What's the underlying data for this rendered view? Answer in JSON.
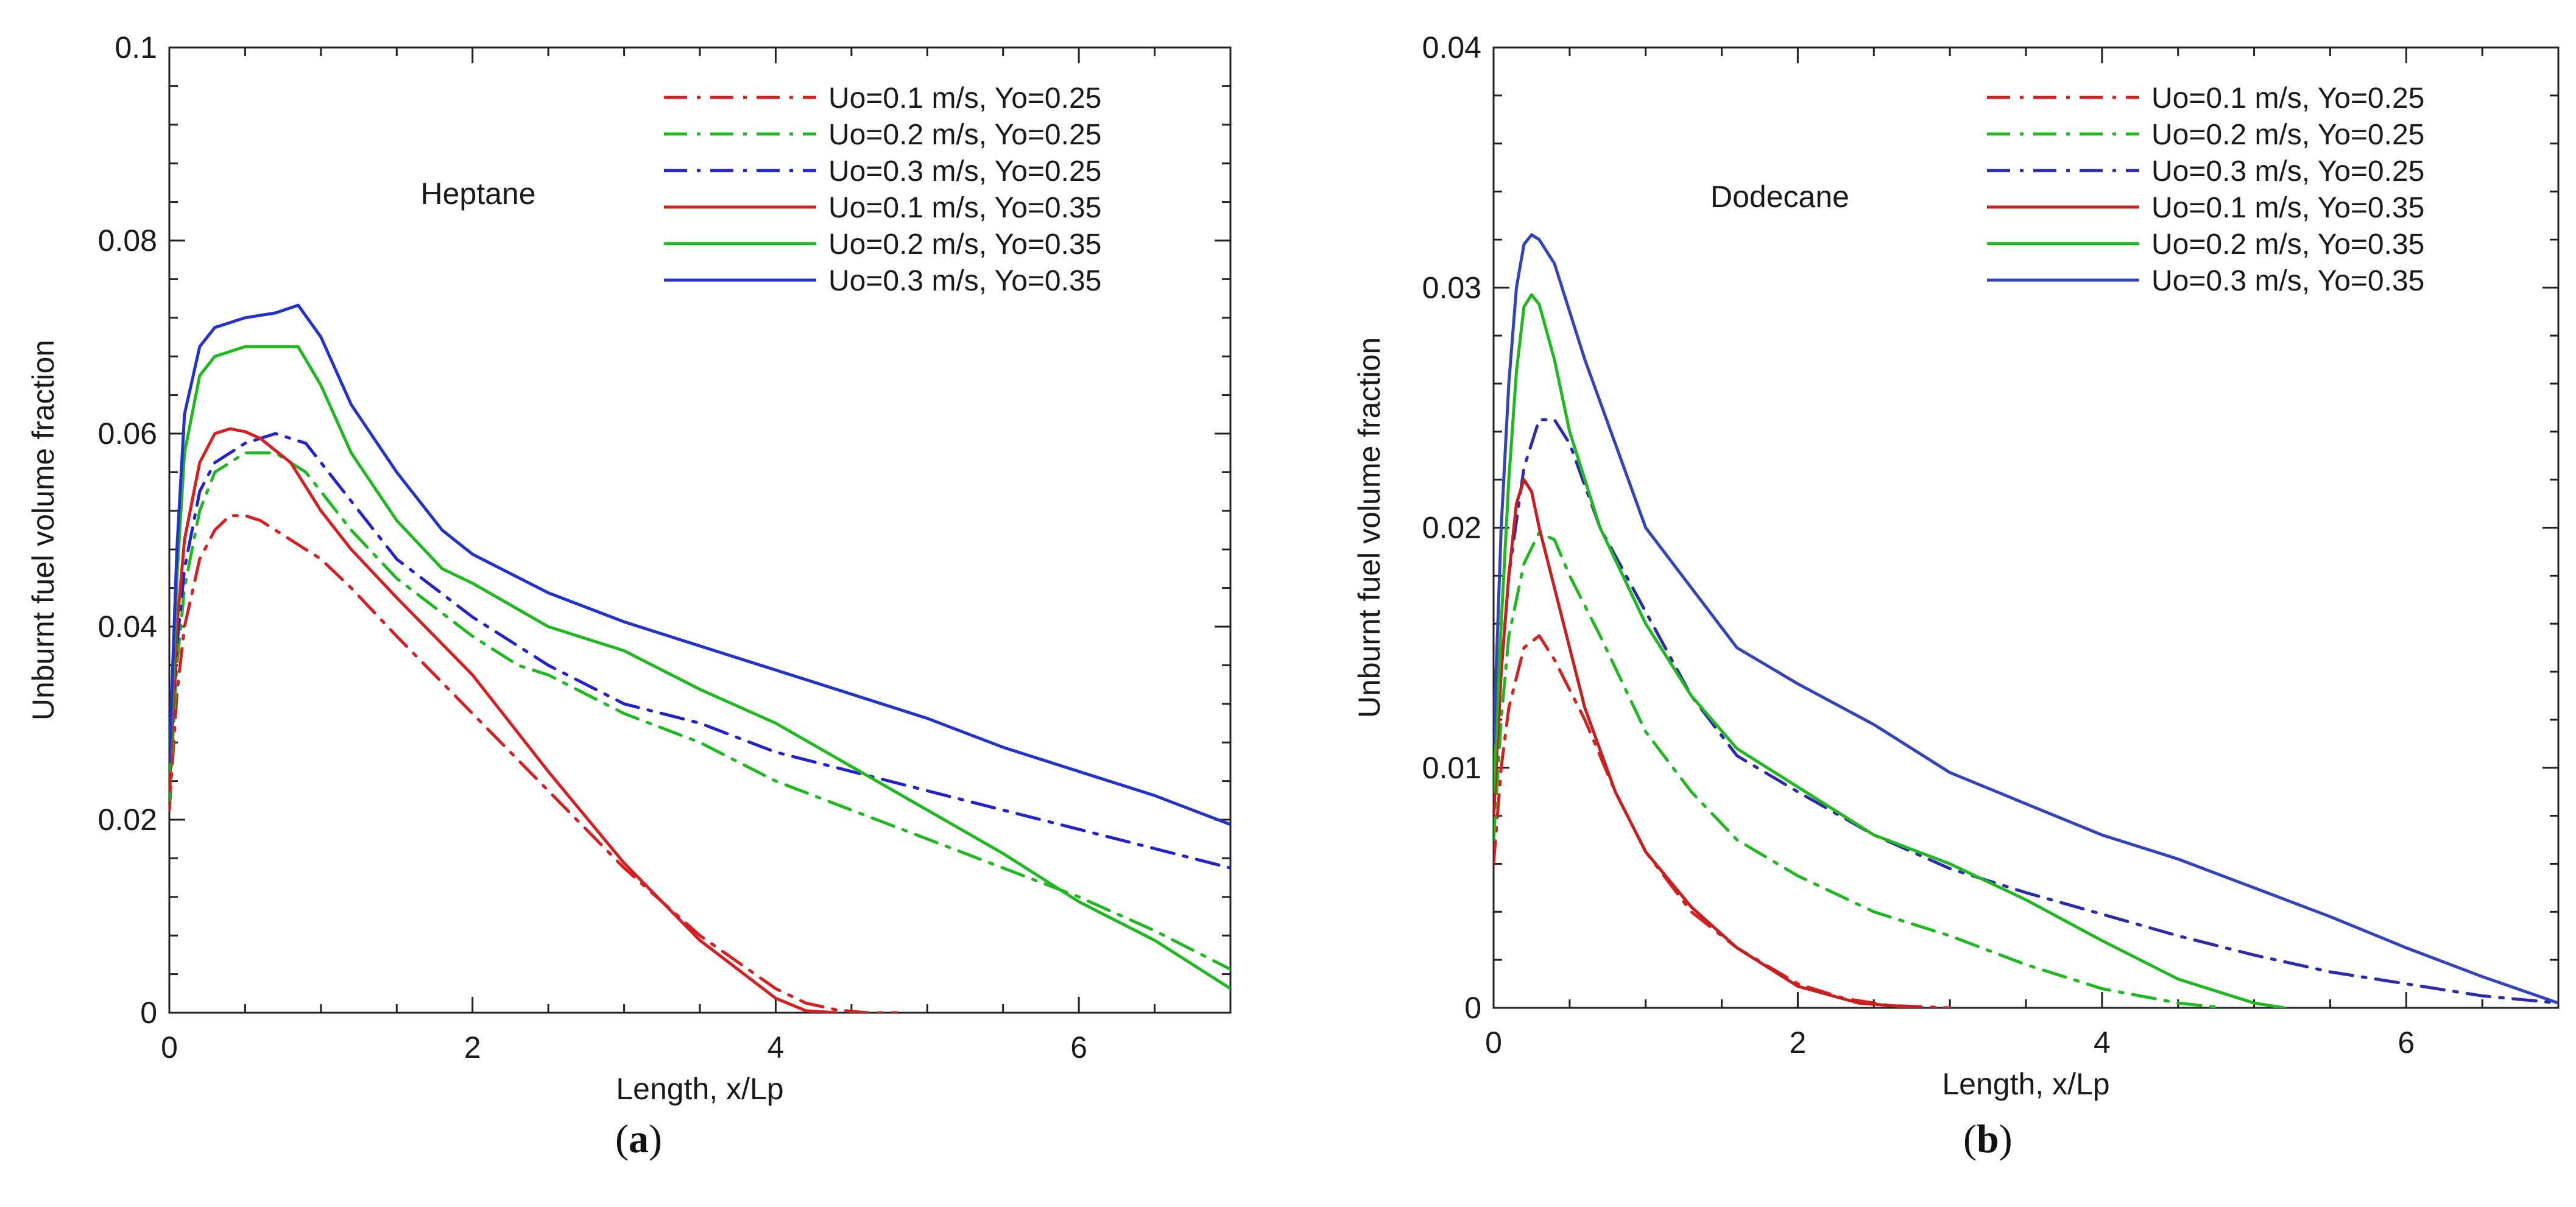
{
  "chart_data": [
    {
      "type": "line",
      "panel_label": "a",
      "annotation": "Heptane",
      "xlabel": "Length, x/Lp",
      "ylabel": "Unburnt fuel volume fraction",
      "xlim": [
        0,
        7
      ],
      "ylim": [
        0,
        0.1
      ],
      "xticks": [
        "0",
        "2",
        "4",
        "6"
      ],
      "yticks": [
        "0",
        "0.02",
        "0.04",
        "0.06",
        "0.08",
        "0.1"
      ],
      "legend_position": "top-right",
      "grid": false,
      "series": [
        {
          "name": "Uo=0.1 m/s, Yo=0.25",
          "color": "#d42020",
          "dash": "dashdot",
          "x": [
            0,
            0.05,
            0.1,
            0.2,
            0.3,
            0.4,
            0.5,
            0.6,
            0.8,
            1.0,
            1.2,
            1.5,
            2.0,
            2.5,
            3.0,
            3.5,
            4.0,
            4.2,
            4.4,
            4.6,
            4.8
          ],
          "y": [
            0.021,
            0.033,
            0.04,
            0.047,
            0.05,
            0.0515,
            0.0515,
            0.051,
            0.049,
            0.047,
            0.044,
            0.039,
            0.031,
            0.023,
            0.015,
            0.008,
            0.0025,
            0.001,
            0.0003,
            0,
            0
          ]
        },
        {
          "name": "Uo=0.2 m/s, Yo=0.25",
          "color": "#20b820",
          "dash": "dashdot",
          "x": [
            0,
            0.05,
            0.1,
            0.2,
            0.3,
            0.5,
            0.7,
            0.9,
            1.2,
            1.5,
            2.0,
            2.3,
            2.5,
            3.0,
            3.5,
            4.0,
            4.5,
            5.0,
            5.5,
            6.0,
            6.5,
            7.0
          ],
          "y": [
            0.022,
            0.036,
            0.044,
            0.052,
            0.056,
            0.058,
            0.058,
            0.056,
            0.05,
            0.045,
            0.039,
            0.036,
            0.035,
            0.031,
            0.028,
            0.024,
            0.021,
            0.018,
            0.015,
            0.012,
            0.0085,
            0.0045
          ]
        },
        {
          "name": "Uo=0.3 m/s, Yo=0.25",
          "color": "#2222cc",
          "dash": "dashdot",
          "x": [
            0,
            0.05,
            0.1,
            0.2,
            0.3,
            0.5,
            0.7,
            0.9,
            1.2,
            1.5,
            2.0,
            2.3,
            2.5,
            3.0,
            3.5,
            4.0,
            4.5,
            5.0,
            5.5,
            6.0,
            6.5,
            7.0
          ],
          "y": [
            0.024,
            0.038,
            0.046,
            0.054,
            0.057,
            0.059,
            0.06,
            0.059,
            0.053,
            0.047,
            0.041,
            0.038,
            0.036,
            0.032,
            0.03,
            0.027,
            0.025,
            0.023,
            0.021,
            0.019,
            0.017,
            0.015
          ]
        },
        {
          "name": "Uo=0.1 m/s, Yo=0.35",
          "color": "#d42020",
          "dash": "solid",
          "x": [
            0,
            0.05,
            0.1,
            0.2,
            0.3,
            0.4,
            0.5,
            0.6,
            0.8,
            1.0,
            1.2,
            1.5,
            2.0,
            2.5,
            3.0,
            3.5,
            4.0,
            4.2,
            4.4
          ],
          "y": [
            0.023,
            0.04,
            0.049,
            0.057,
            0.06,
            0.0605,
            0.0602,
            0.0595,
            0.057,
            0.052,
            0.048,
            0.043,
            0.035,
            0.025,
            0.0155,
            0.0075,
            0.0015,
            0.0002,
            0
          ]
        },
        {
          "name": "Uo=0.2 m/s, Yo=0.35",
          "color": "#20b820",
          "dash": "solid",
          "x": [
            0,
            0.05,
            0.1,
            0.2,
            0.3,
            0.5,
            0.7,
            0.85,
            1.0,
            1.2,
            1.5,
            1.8,
            2.0,
            2.5,
            3.0,
            3.5,
            4.0,
            4.5,
            5.0,
            5.5,
            6.0,
            6.5,
            7.0
          ],
          "y": [
            0.025,
            0.045,
            0.058,
            0.066,
            0.068,
            0.069,
            0.069,
            0.069,
            0.065,
            0.058,
            0.051,
            0.046,
            0.0445,
            0.04,
            0.0375,
            0.0335,
            0.03,
            0.0255,
            0.021,
            0.0165,
            0.0115,
            0.0075,
            0.0025
          ]
        },
        {
          "name": "Uo=0.3 m/s, Yo=0.35",
          "color": "#2233cc",
          "dash": "solid",
          "x": [
            0,
            0.05,
            0.1,
            0.2,
            0.3,
            0.5,
            0.7,
            0.85,
            1.0,
            1.2,
            1.5,
            1.8,
            2.0,
            2.5,
            3.0,
            3.5,
            4.0,
            4.5,
            5.0,
            5.5,
            6.0,
            6.5,
            7.0
          ],
          "y": [
            0.026,
            0.048,
            0.062,
            0.069,
            0.071,
            0.072,
            0.0725,
            0.0733,
            0.07,
            0.063,
            0.056,
            0.05,
            0.0475,
            0.0435,
            0.0405,
            0.038,
            0.0355,
            0.033,
            0.0305,
            0.0275,
            0.025,
            0.0225,
            0.0195
          ]
        }
      ]
    },
    {
      "type": "line",
      "panel_label": "b",
      "annotation": "Dodecane",
      "xlabel": "Length, x/Lp",
      "ylabel": "Unburnt fuel volume fraction",
      "xlim": [
        0,
        7
      ],
      "ylim": [
        0,
        0.04
      ],
      "xticks": [
        "0",
        "2",
        "4",
        "6"
      ],
      "yticks": [
        "0",
        "0.01",
        "0.02",
        "0.03",
        "0.04"
      ],
      "legend_position": "top-right",
      "grid": false,
      "series": [
        {
          "name": "Uo=0.1 m/s, Yo=0.25",
          "color": "#d42020",
          "dash": "dashdot",
          "x": [
            0,
            0.05,
            0.1,
            0.2,
            0.3,
            0.4,
            0.6,
            0.8,
            1.0,
            1.3,
            1.6,
            2.0,
            2.3,
            2.6,
            3.0
          ],
          "y": [
            0.006,
            0.01,
            0.0125,
            0.015,
            0.0155,
            0.0145,
            0.012,
            0.009,
            0.0065,
            0.004,
            0.0025,
            0.001,
            0.0004,
            0.0001,
            0
          ]
        },
        {
          "name": "Uo=0.2 m/s, Yo=0.25",
          "color": "#20b820",
          "dash": "dashdot",
          "x": [
            0,
            0.05,
            0.1,
            0.2,
            0.3,
            0.4,
            0.5,
            0.7,
            1.0,
            1.3,
            1.6,
            2.0,
            2.5,
            3.0,
            3.5,
            4.0,
            4.5,
            4.8
          ],
          "y": [
            0.007,
            0.012,
            0.0155,
            0.0185,
            0.0198,
            0.0195,
            0.018,
            0.0155,
            0.0115,
            0.009,
            0.007,
            0.0055,
            0.004,
            0.003,
            0.0018,
            0.0008,
            0.0002,
            0
          ]
        },
        {
          "name": "Uo=0.3 m/s, Yo=0.25",
          "color": "#2a2aaa",
          "dash": "dashdot",
          "x": [
            0,
            0.05,
            0.1,
            0.2,
            0.3,
            0.4,
            0.5,
            0.7,
            1.0,
            1.3,
            1.6,
            2.0,
            2.5,
            3.0,
            3.5,
            4.0,
            4.5,
            5.0,
            5.5,
            6.0,
            6.5,
            7.0
          ],
          "y": [
            0.008,
            0.014,
            0.018,
            0.0225,
            0.0245,
            0.0245,
            0.0235,
            0.02,
            0.0165,
            0.013,
            0.0105,
            0.009,
            0.0072,
            0.0058,
            0.0048,
            0.0039,
            0.003,
            0.0022,
            0.0015,
            0.001,
            0.0005,
            0.0002
          ]
        },
        {
          "name": "Uo=0.1 m/s, Yo=0.35",
          "color": "#c81e1e",
          "dash": "solid",
          "x": [
            0,
            0.05,
            0.1,
            0.15,
            0.2,
            0.25,
            0.3,
            0.4,
            0.6,
            0.8,
            1.0,
            1.3,
            1.6,
            2.0,
            2.4,
            2.8
          ],
          "y": [
            0.008,
            0.014,
            0.018,
            0.021,
            0.022,
            0.0215,
            0.02,
            0.0175,
            0.0125,
            0.009,
            0.0065,
            0.0042,
            0.0025,
            0.0009,
            0.0002,
            0
          ]
        },
        {
          "name": "Uo=0.2 m/s, Yo=0.35",
          "color": "#20b820",
          "dash": "solid",
          "x": [
            0,
            0.05,
            0.1,
            0.15,
            0.2,
            0.25,
            0.3,
            0.4,
            0.5,
            0.7,
            1.0,
            1.3,
            1.6,
            2.0,
            2.5,
            3.0,
            3.5,
            4.0,
            4.5,
            5.0,
            5.2
          ],
          "y": [
            0.009,
            0.016,
            0.022,
            0.0265,
            0.0292,
            0.0297,
            0.0293,
            0.027,
            0.024,
            0.02,
            0.016,
            0.013,
            0.0108,
            0.0092,
            0.0072,
            0.006,
            0.0045,
            0.0028,
            0.0012,
            0.0002,
            0
          ]
        },
        {
          "name": "Uo=0.3 m/s, Yo=0.35",
          "color": "#3344bb",
          "dash": "solid",
          "x": [
            0,
            0.05,
            0.1,
            0.15,
            0.2,
            0.25,
            0.3,
            0.4,
            0.6,
            0.8,
            1.0,
            1.3,
            1.6,
            2.0,
            2.5,
            3.0,
            3.5,
            4.0,
            4.5,
            5.0,
            5.5,
            6.0,
            6.5,
            7.0
          ],
          "y": [
            0.011,
            0.02,
            0.026,
            0.03,
            0.0318,
            0.0322,
            0.032,
            0.031,
            0.027,
            0.0235,
            0.02,
            0.0175,
            0.015,
            0.0135,
            0.0118,
            0.0098,
            0.0085,
            0.0072,
            0.0062,
            0.005,
            0.0038,
            0.0025,
            0.0013,
            0.0002
          ]
        }
      ]
    }
  ]
}
